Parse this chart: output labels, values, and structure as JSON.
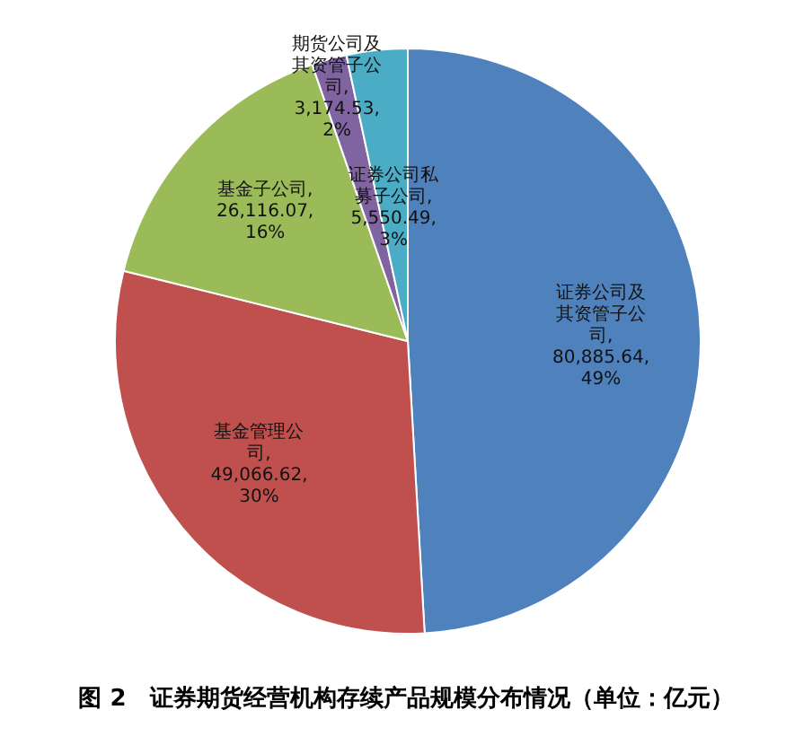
{
  "chart_data": {
    "type": "pie",
    "title": "图 2　证券期货经营机构存续产品规模分布情况（单位：亿元）",
    "categories": [
      "证券公司及其资管子公司",
      "基金管理公司",
      "基金子公司",
      "期货公司及其资管子公司",
      "证券公司私募子公司"
    ],
    "values": [
      80885.64,
      49066.62,
      26116.07,
      3174.53,
      5550.49
    ],
    "colors": [
      "#4f81bd",
      "#c0504d",
      "#9bbb59",
      "#8064a2",
      "#4bacc6"
    ],
    "value_labels": [
      ",\n80,885.64,\n49%",
      ",\n49,066.62,\n30%",
      ",\n26,116.07,\n16%",
      ",\n3,174.53,\n2%",
      ",\n5,550.49,\n3%"
    ]
  }
}
